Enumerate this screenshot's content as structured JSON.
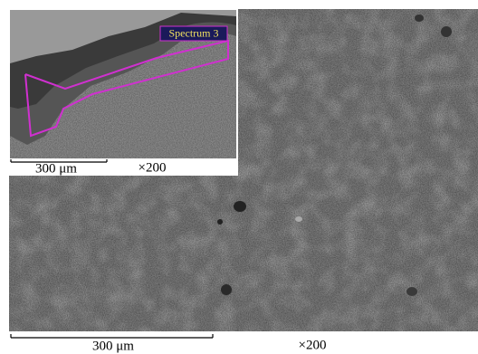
{
  "main_image": {
    "scale_bar_label": "300 μm",
    "magnification": "×200"
  },
  "inset": {
    "spectrum_label": "Spectrum 3",
    "scale_bar_label": "300 μm",
    "magnification": "×200"
  }
}
